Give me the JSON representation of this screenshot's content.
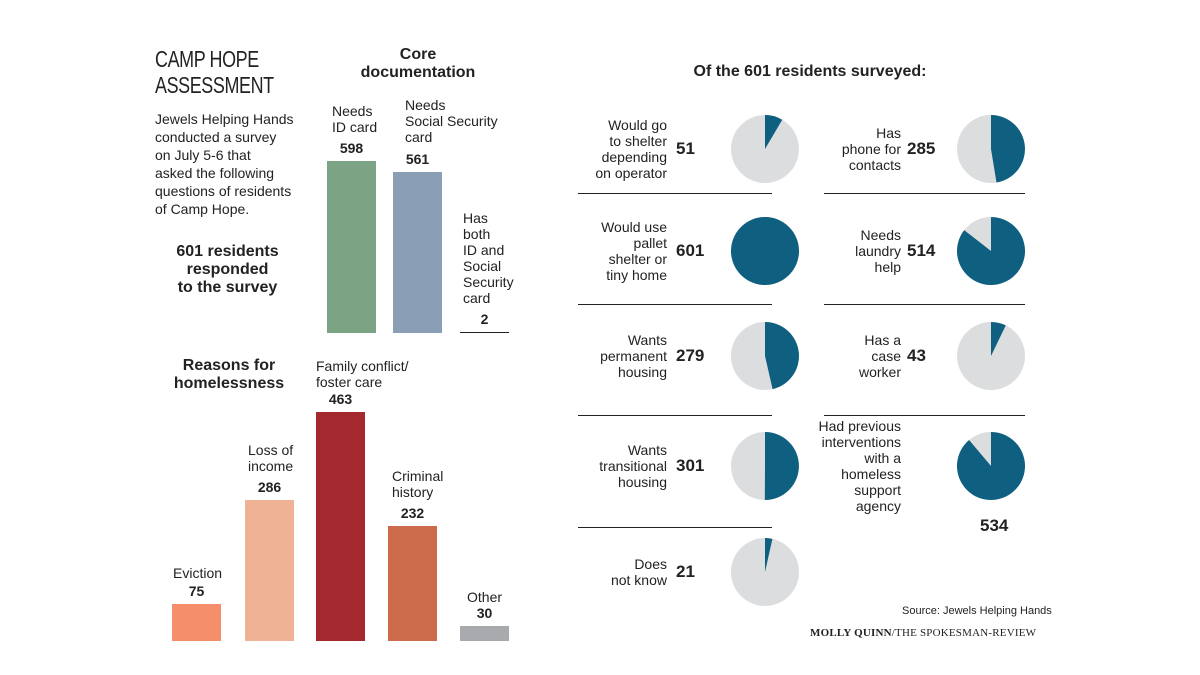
{
  "header": {
    "title": "CAMP HOPE\nASSESSMENT",
    "intro": "Jewels Helping Hands\nconducted a survey\non July 5-6 that\nasked the following\nquestions of residents\nof Camp Hope.",
    "callout": "601 residents\nresponded\nto the survey"
  },
  "core_doc": {
    "title": "Core\ndocumentation",
    "labels": [
      "Needs\nID card",
      "Needs\nSocial Security\ncard",
      "Has\nboth\nID and\nSocial\nSecurity\ncard"
    ]
  },
  "reasons": {
    "title": "Reasons for\nhomelessness",
    "labels": [
      "Eviction",
      "Loss of\nincome",
      "Family conflict/\nfoster care",
      "Criminal\nhistory",
      "Other"
    ]
  },
  "survey": {
    "title": "Of the 601 residents surveyed:",
    "items": [
      {
        "label": "Would go\nto shelter\ndepending\non operator",
        "value": "51"
      },
      {
        "label": "Would use\npallet\nshelter or\ntiny home",
        "value": "601"
      },
      {
        "label": "Wants\npermanent\nhousing",
        "value": "279"
      },
      {
        "label": "Wants\ntransitional\nhousing",
        "value": "301"
      },
      {
        "label": "Does\nnot know",
        "value": "21"
      },
      {
        "label": "Has\nphone for\ncontacts",
        "value": "285"
      },
      {
        "label": "Needs\nlaundry\nhelp",
        "value": "514"
      },
      {
        "label": "Has a\ncase\nworker",
        "value": "43"
      },
      {
        "label": "Had previous\ninterventions\nwith a\nhomeless\nsupport\nagency",
        "value": "534"
      }
    ]
  },
  "footer": {
    "source": "Source: Jewels Helping Hands",
    "credit_name": "MOLLY QUINN",
    "credit_org": "/THE SPOKESMAN-REVIEW"
  },
  "colors": {
    "pie_fill": "#0e5f80",
    "pie_bg": "#dcdddf",
    "bar_id": "#7ba384",
    "bar_ssc": "#8a9fb6",
    "eviction": "#f48e6b",
    "loss_income": "#efb294",
    "family": "#a3292f",
    "criminal": "#cc6b4a",
    "other": "#a8aaad"
  },
  "chart_data": [
    {
      "type": "bar",
      "title": "Core documentation",
      "categories": [
        "Needs ID card",
        "Needs Social Security card",
        "Has both ID and Social Security card"
      ],
      "values": [
        598,
        561,
        2
      ]
    },
    {
      "type": "bar",
      "title": "Reasons for homelessness",
      "categories": [
        "Eviction",
        "Loss of income",
        "Family conflict/foster care",
        "Criminal history",
        "Other"
      ],
      "values": [
        75,
        286,
        463,
        232,
        30
      ]
    },
    {
      "type": "pie",
      "title": "Of the 601 residents surveyed:",
      "total": 601,
      "categories": [
        "Would go to shelter depending on operator",
        "Would use pallet shelter or tiny home",
        "Wants permanent housing",
        "Wants transitional housing",
        "Does not know",
        "Has phone for contacts",
        "Needs laundry help",
        "Has a case worker",
        "Had previous interventions with a homeless support agency"
      ],
      "values": [
        51,
        601,
        279,
        301,
        21,
        285,
        514,
        43,
        534
      ]
    }
  ]
}
